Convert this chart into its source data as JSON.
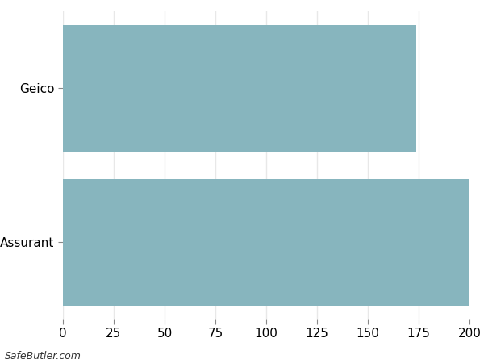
{
  "categories": [
    "Assurant",
    "Geico"
  ],
  "values": [
    200,
    174
  ],
  "bar_color": "#87b5be",
  "xlim": [
    0,
    200
  ],
  "xticks": [
    0,
    25,
    50,
    75,
    100,
    125,
    150,
    175,
    200
  ],
  "background_color": "#ffffff",
  "grid_color": "#e8e8e8",
  "watermark": "SafeButler.com",
  "tick_label_fontsize": 11,
  "bar_height": 0.82
}
